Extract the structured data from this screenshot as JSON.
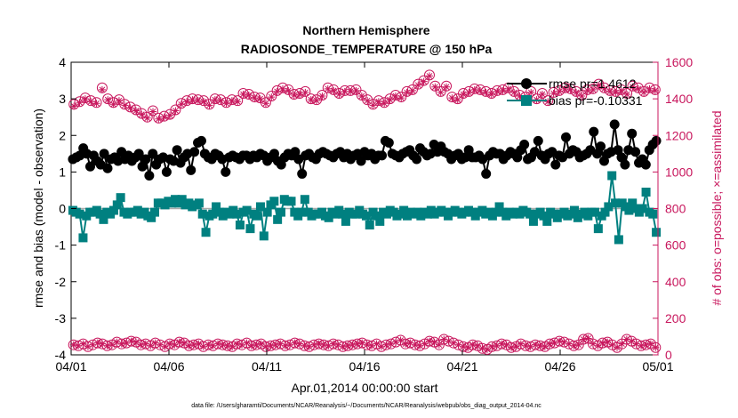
{
  "chart_data": {
    "type": "line",
    "title": "Northern Hemisphere",
    "subtitle": "RADIOSONDE_TEMPERATURE @ 150 hPa",
    "xlabel": "Apr.01,2014 00:00:00 start",
    "ylabel": "rmse and bias (model - observation)",
    "ylabel_right": "# of obs: o=possible; ×=assimilated",
    "footer": "data file: /Users/gharamti/Documents/NCAR/Reanalysis/~/Documents/NCAR/Reanalysis/webpub/obs_diag_output_2014-04.nc",
    "xlim": [
      0,
      30
    ],
    "ylim": [
      -4,
      4
    ],
    "ylim_right": [
      0,
      1600
    ],
    "x_ticks": [
      0,
      5,
      10,
      15,
      20,
      25,
      30
    ],
    "x_tick_labels": [
      "04/01",
      "04/06",
      "04/11",
      "04/16",
      "04/21",
      "04/26",
      "05/01"
    ],
    "y_ticks": [
      -4,
      -3,
      -2,
      -1,
      0,
      1,
      2,
      3,
      4
    ],
    "y_tick_labels": [
      "-4",
      "-3",
      "-2",
      "-1",
      "0",
      "1",
      "2",
      "3",
      "4"
    ],
    "y_ticks_right": [
      0,
      200,
      400,
      600,
      800,
      1000,
      1200,
      1400,
      1600
    ],
    "y_tick_labels_right": [
      "0",
      "200",
      "400",
      "600",
      "800",
      "1000",
      "1200",
      "1400",
      "1600"
    ],
    "legend": [
      {
        "name": "rmse pr=1.4612",
        "color": "#000000",
        "marker": "circle"
      },
      {
        "name": "bias pr=-0.10331",
        "color": "#008080",
        "marker": "square"
      }
    ],
    "colors": {
      "rmse": "#000000",
      "bias": "#008080",
      "obs": "#c8175d",
      "zero": "#aaaaaa"
    },
    "series": [
      {
        "name": "rmse",
        "values": [
          1.35,
          1.4,
          1.45,
          1.65,
          1.5,
          1.15,
          1.45,
          1.3,
          1.2,
          1.5,
          1.1,
          1.35,
          1.4,
          1.3,
          1.55,
          1.35,
          1.45,
          1.3,
          1.4,
          1.5,
          1.15,
          1.35,
          0.9,
          1.5,
          1.2,
          1.35,
          1.4,
          1.0,
          1.35,
          1.3,
          1.6,
          1.25,
          1.4,
          1.5,
          1.05,
          1.55,
          1.8,
          1.85,
          1.5,
          1.4,
          1.35,
          1.5,
          1.45,
          1.35,
          1.0,
          1.4,
          1.45,
          1.4,
          1.35,
          1.45,
          1.45,
          1.35,
          1.45,
          1.4,
          1.5,
          1.45,
          1.3,
          1.4,
          1.5,
          1.3,
          1.2,
          1.4,
          1.5,
          1.45,
          1.55,
          1.35,
          0.95,
          1.45,
          1.5,
          1.4,
          1.35,
          1.5,
          1.55,
          1.5,
          1.45,
          1.4,
          1.5,
          1.55,
          1.4,
          1.5,
          1.35,
          1.45,
          1.5,
          1.3,
          1.55,
          1.45,
          1.5,
          1.35,
          1.45,
          1.45,
          1.85,
          1.8,
          1.5,
          1.45,
          1.4,
          1.5,
          1.55,
          1.6,
          1.45,
          1.35,
          1.65,
          1.55,
          1.45,
          1.5,
          1.75,
          1.55,
          1.7,
          1.55,
          1.5,
          1.35,
          1.45,
          1.5,
          1.35,
          1.4,
          1.6,
          1.4,
          1.4,
          1.45,
          1.35,
          0.95,
          1.45,
          1.55,
          1.5,
          1.5,
          1.35,
          1.45,
          1.55,
          1.5,
          1.4,
          1.6,
          1.75,
          1.35,
          1.4,
          1.55,
          1.85,
          1.45,
          1.35,
          1.5,
          1.55,
          1.2,
          1.45,
          1.4,
          1.95,
          1.5,
          1.6,
          1.55,
          1.4,
          1.45,
          1.5,
          1.6,
          2.1,
          1.5,
          1.7,
          1.3,
          1.5,
          1.55,
          2.3,
          1.6,
          1.4,
          1.2,
          1.6,
          2.05,
          1.55,
          1.25,
          1.35,
          1.2,
          1.6,
          1.75,
          1.85
        ]
      },
      {
        "name": "bias",
        "values": [
          -0.05,
          -0.1,
          -0.15,
          -0.8,
          -0.2,
          -0.1,
          -0.1,
          -0.05,
          -0.15,
          -0.3,
          -0.1,
          -0.15,
          -0.05,
          0.1,
          0.3,
          -0.1,
          -0.15,
          -0.1,
          -0.1,
          -0.05,
          -0.15,
          -0.1,
          -0.2,
          -0.25,
          -0.1,
          0.15,
          0.15,
          0.1,
          0.2,
          0.15,
          0.25,
          0.15,
          0.25,
          0.1,
          0.15,
          0.05,
          0.1,
          0.15,
          -0.15,
          -0.65,
          -0.2,
          -0.15,
          0.05,
          -0.1,
          -0.2,
          -0.1,
          -0.15,
          -0.05,
          -0.15,
          -0.45,
          -0.1,
          -0.05,
          -0.55,
          -0.15,
          -0.2,
          0.05,
          -0.75,
          -0.1,
          0.1,
          0.2,
          -0.3,
          -0.1,
          0.25,
          0.2,
          0.2,
          -0.1,
          -0.2,
          -0.1,
          0.25,
          -0.1,
          -0.2,
          -0.15,
          -0.15,
          -0.1,
          -0.2,
          -0.25,
          -0.1,
          -0.15,
          -0.05,
          -0.15,
          -0.35,
          -0.1,
          -0.15,
          -0.15,
          -0.05,
          -0.15,
          -0.2,
          -0.45,
          -0.1,
          -0.2,
          -0.35,
          -0.1,
          -0.15,
          -0.05,
          -0.1,
          -0.2,
          -0.15,
          -0.05,
          -0.2,
          -0.1,
          -0.15,
          -0.1,
          -0.2,
          -0.1,
          -0.15,
          -0.05,
          -0.15,
          -0.1,
          -0.05,
          -0.1,
          -0.2,
          -0.1,
          -0.05,
          -0.1,
          -0.15,
          -0.1,
          -0.05,
          -0.1,
          -0.2,
          -0.1,
          -0.05,
          -0.15,
          -0.1,
          -0.2,
          -0.1,
          0.05,
          -0.1,
          -0.2,
          -0.1,
          -0.15,
          -0.1,
          -0.15,
          -0.05,
          -0.1,
          -0.15,
          -0.35,
          -0.15,
          -0.1,
          -0.2,
          -0.35,
          -0.1,
          -0.15,
          -0.25,
          -0.15,
          -0.1,
          -0.2,
          -0.15,
          -0.05,
          -0.25,
          -0.15,
          -0.1,
          -0.2,
          -0.1,
          -0.1,
          -0.55,
          -0.2,
          -0.1,
          0.05,
          0.9,
          0.15,
          -0.85,
          0.15,
          0.05,
          -0.05,
          0.15,
          0.0,
          -0.1,
          0.0,
          0.45,
          -0.1,
          -0.15,
          -0.65
        ]
      },
      {
        "name": "obs_possible",
        "axis": "right",
        "values": [
          1370,
          1385,
          1405,
          1390,
          1380,
          1460,
          1400,
          1380,
          1395,
          1370,
          1355,
          1340,
          1320,
          1300,
          1335,
          1295,
          1305,
          1315,
          1340,
          1375,
          1390,
          1400,
          1395,
          1390,
          1370,
          1400,
          1395,
          1380,
          1395,
          1390,
          1430,
          1425,
          1410,
          1405,
          1380,
          1415,
          1445,
          1460,
          1450,
          1425,
          1430,
          1440,
          1400,
          1395,
          1420,
          1460,
          1450,
          1430,
          1445,
          1445,
          1450,
          1420,
          1395,
          1370,
          1390,
          1380,
          1400,
          1420,
          1410,
          1440,
          1450,
          1480,
          1500,
          1530,
          1470,
          1440,
          1470,
          1410,
          1400,
          1430,
          1440,
          1455,
          1450,
          1440,
          1430,
          1445,
          1450,
          1460,
          1440,
          1420,
          1410,
          1440,
          1400,
          1430,
          1390,
          1435,
          1445,
          1460,
          1455,
          1440,
          1420,
          1450,
          1455,
          1480,
          1460,
          1445,
          1440,
          1450,
          1430,
          1470,
          1460,
          1440,
          1460,
          1450
        ],
        "values_assim": [
          1360,
          1380,
          1400,
          1385,
          1375,
          1450,
          1395,
          1370,
          1390,
          1365,
          1350,
          1335,
          1315,
          1295,
          1330,
          1290,
          1300,
          1310,
          1335,
          1370,
          1385,
          1395,
          1390,
          1385,
          1365,
          1395,
          1390,
          1375,
          1390,
          1385,
          1425,
          1420,
          1405,
          1400,
          1375,
          1410,
          1440,
          1455,
          1445,
          1420,
          1425,
          1435,
          1395,
          1390,
          1415,
          1455,
          1445,
          1425,
          1440,
          1440,
          1445,
          1415,
          1390,
          1365,
          1385,
          1375,
          1395,
          1415,
          1405,
          1435,
          1445,
          1475,
          1495,
          1525,
          1465,
          1435,
          1465,
          1405,
          1395,
          1425,
          1435,
          1450,
          1445,
          1435,
          1425,
          1440,
          1445,
          1455,
          1435,
          1415,
          1405,
          1435,
          1395,
          1425,
          1385,
          1430,
          1440,
          1455,
          1450,
          1435,
          1415,
          1445,
          1450,
          1475,
          1455,
          1440,
          1435,
          1445,
          1425,
          1465,
          1455,
          1435,
          1455,
          1445
        ]
      },
      {
        "name": "obs_low",
        "axis": "right",
        "values": [
          55,
          50,
          60,
          45,
          55,
          65,
          60,
          50,
          55,
          70,
          60,
          65,
          75,
          70,
          55,
          60,
          50,
          65,
          55,
          45,
          60,
          55,
          70,
          65,
          50,
          55,
          60,
          45,
          55,
          50,
          60,
          55,
          50,
          45,
          60,
          55,
          65,
          50,
          55,
          60,
          45,
          50,
          55,
          60,
          50,
          55,
          65,
          60,
          50,
          45,
          55,
          60,
          55,
          50,
          60,
          55,
          45,
          50,
          55,
          60,
          65,
          55,
          50,
          60,
          45,
          55,
          60,
          70,
          80,
          60,
          65,
          55,
          50,
          60,
          75,
          70,
          55,
          85,
          75,
          65,
          55,
          45,
          40,
          55,
          50,
          35,
          30,
          45,
          50,
          60,
          55,
          40,
          45,
          60,
          50,
          45,
          55,
          50,
          45,
          60,
          65,
          75,
          70,
          60,
          50,
          55,
          85,
          90,
          60,
          50,
          65,
          70,
          55,
          40,
          60,
          85,
          75,
          60,
          50,
          55,
          60,
          40
        ]
      }
    ]
  }
}
